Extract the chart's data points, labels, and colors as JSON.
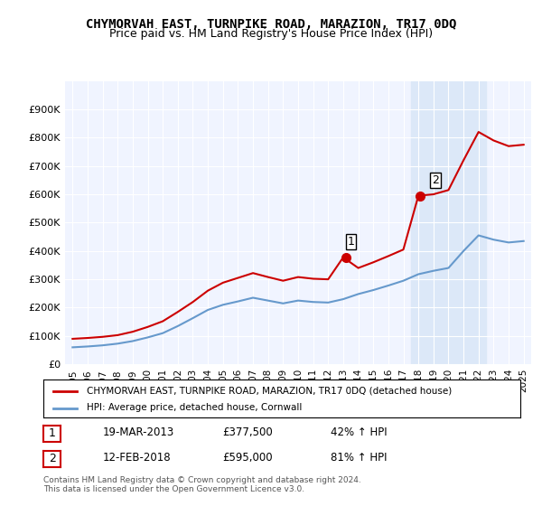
{
  "title": "CHYMORVAH EAST, TURNPIKE ROAD, MARAZION, TR17 0DQ",
  "subtitle": "Price paid vs. HM Land Registry's House Price Index (HPI)",
  "legend_line1": "CHYMORVAH EAST, TURNPIKE ROAD, MARAZION, TR17 0DQ (detached house)",
  "legend_line2": "HPI: Average price, detached house, Cornwall",
  "annotation1_date": "19-MAR-2013",
  "annotation1_price": "£377,500",
  "annotation1_hpi": "42% ↑ HPI",
  "annotation2_date": "12-FEB-2018",
  "annotation2_price": "£595,000",
  "annotation2_hpi": "81% ↑ HPI",
  "footer": "Contains HM Land Registry data © Crown copyright and database right 2024.\nThis data is licensed under the Open Government Licence v3.0.",
  "background_color": "#ffffff",
  "plot_bg_color": "#f0f4ff",
  "shaded_region_color": "#dce8f8",
  "red_line_color": "#cc0000",
  "blue_line_color": "#6699cc",
  "years": [
    1995,
    1996,
    1997,
    1998,
    1999,
    2000,
    2001,
    2002,
    2003,
    2004,
    2005,
    2006,
    2007,
    2008,
    2009,
    2010,
    2011,
    2012,
    2013,
    2014,
    2015,
    2016,
    2017,
    2018,
    2019,
    2020,
    2021,
    2022,
    2023,
    2024,
    2025
  ],
  "hpi_values": [
    60000,
    63000,
    67000,
    73000,
    82000,
    95000,
    110000,
    135000,
    163000,
    192000,
    210000,
    222000,
    235000,
    225000,
    215000,
    225000,
    220000,
    218000,
    230000,
    248000,
    262000,
    278000,
    295000,
    318000,
    330000,
    340000,
    400000,
    455000,
    440000,
    430000,
    435000
  ],
  "property_values": [
    90000,
    93000,
    97000,
    103000,
    115000,
    132000,
    152000,
    185000,
    220000,
    260000,
    288000,
    305000,
    322000,
    308000,
    295000,
    308000,
    302000,
    300000,
    377500,
    340000,
    360000,
    382000,
    405000,
    595000,
    600000,
    615000,
    720000,
    820000,
    790000,
    770000,
    775000
  ],
  "sale1_year": 2013.21,
  "sale1_value": 377500,
  "sale2_year": 2018.12,
  "sale2_value": 595000,
  "shaded_x_start": 2017.5,
  "shaded_x_end": 2022.5,
  "ylim": [
    0,
    1000000
  ],
  "yticks": [
    0,
    100000,
    200000,
    300000,
    400000,
    500000,
    600000,
    700000,
    800000,
    900000
  ],
  "ytick_labels": [
    "£0",
    "£100K",
    "£200K",
    "£300K",
    "£400K",
    "£500K",
    "£600K",
    "£700K",
    "£800K",
    "£900K"
  ],
  "xlim_start": 1994.5,
  "xlim_end": 2025.5,
  "xticks": [
    1995,
    1996,
    1997,
    1998,
    1999,
    2000,
    2001,
    2002,
    2003,
    2004,
    2005,
    2006,
    2007,
    2008,
    2009,
    2010,
    2011,
    2012,
    2013,
    2014,
    2015,
    2016,
    2017,
    2018,
    2019,
    2020,
    2021,
    2022,
    2023,
    2024,
    2025
  ]
}
